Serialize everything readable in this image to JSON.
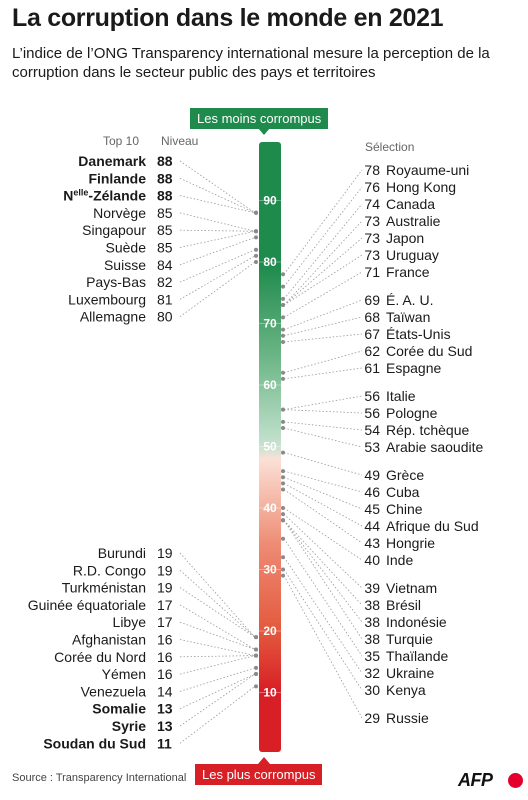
{
  "title": "La corruption dans le monde en 2021",
  "subtitle": "L’indice de l’ONG Transparency international mesure la perception de la corruption dans le secteur public des pays et territoires",
  "top_label": "Les moins corrompus",
  "bottom_label": "Les plus corrompus",
  "left_header": "Top 10",
  "level_header": "Niveau",
  "right_header": "Sélection",
  "source": "Source : Transparency International",
  "logo": "AFP",
  "chart_data": {
    "type": "scale",
    "ylim": [
      11,
      92
    ],
    "ticks": [
      10,
      20,
      30,
      40,
      50,
      60,
      70,
      80,
      90
    ],
    "colors": {
      "top_green": "#1e8a4c",
      "light_green": "#c8e3d1",
      "light_pink": "#fbe0d6",
      "salmon": "#ee8b74",
      "red": "#d81f26"
    },
    "top10": [
      {
        "country": "Danemark",
        "value": 88,
        "bold": true
      },
      {
        "country": "Finlande",
        "value": 88,
        "bold": true
      },
      {
        "country": "Nelle-Zélande",
        "prefix": "N",
        "sup": "elle",
        "suffix": "-Zélande",
        "value": 88,
        "bold": true
      },
      {
        "country": "Norvège",
        "value": 85,
        "bold": false
      },
      {
        "country": "Singapour",
        "value": 85,
        "bold": false
      },
      {
        "country": "Suède",
        "value": 85,
        "bold": false
      },
      {
        "country": "Suisse",
        "value": 84,
        "bold": false
      },
      {
        "country": "Pays-Bas",
        "value": 82,
        "bold": false
      },
      {
        "country": "Luxembourg",
        "value": 81,
        "bold": false
      },
      {
        "country": "Allemagne",
        "value": 80,
        "bold": false
      }
    ],
    "bottom10": [
      {
        "country": "Burundi",
        "value": 19,
        "bold": false
      },
      {
        "country": "R.D. Congo",
        "value": 19,
        "bold": false
      },
      {
        "country": "Turkménistan",
        "value": 19,
        "bold": false
      },
      {
        "country": "Guinée équatoriale",
        "value": 17,
        "bold": false
      },
      {
        "country": "Libye",
        "value": 17,
        "bold": false
      },
      {
        "country": "Afghanistan",
        "value": 16,
        "bold": false
      },
      {
        "country": "Corée du Nord",
        "value": 16,
        "bold": false
      },
      {
        "country": "Yémen",
        "value": 16,
        "bold": false
      },
      {
        "country": "Venezuela",
        "value": 14,
        "bold": false
      },
      {
        "country": "Somalie",
        "value": 13,
        "bold": true
      },
      {
        "country": "Syrie",
        "value": 13,
        "bold": true
      },
      {
        "country": "Soudan du Sud",
        "value": 11,
        "bold": true
      }
    ],
    "selection": [
      {
        "country": "Royaume-uni",
        "value": 78
      },
      {
        "country": "Hong Kong",
        "value": 76
      },
      {
        "country": "Canada",
        "value": 74
      },
      {
        "country": "Australie",
        "value": 73
      },
      {
        "country": "Japon",
        "value": 73
      },
      {
        "country": "Uruguay",
        "value": 73
      },
      {
        "country": "France",
        "value": 71
      },
      {
        "country": "É. A. U.",
        "value": 69
      },
      {
        "country": "Taïwan",
        "value": 68
      },
      {
        "country": "États-Unis",
        "value": 67
      },
      {
        "country": "Corée du Sud",
        "value": 62
      },
      {
        "country": "Espagne",
        "value": 61
      },
      {
        "country": "Italie",
        "value": 56
      },
      {
        "country": "Pologne",
        "value": 56
      },
      {
        "country": "Rép. tchèque",
        "value": 54
      },
      {
        "country": "Arabie saoudite",
        "value": 53
      },
      {
        "country": "Grèce",
        "value": 49
      },
      {
        "country": "Cuba",
        "value": 46
      },
      {
        "country": "Chine",
        "value": 45
      },
      {
        "country": "Afrique du Sud",
        "value": 44
      },
      {
        "country": "Hongrie",
        "value": 43
      },
      {
        "country": "Inde",
        "value": 40
      },
      {
        "country": "Vietnam",
        "value": 39
      },
      {
        "country": "Brésil",
        "value": 38
      },
      {
        "country": "Indonésie",
        "value": 38
      },
      {
        "country": "Turquie",
        "value": 38
      },
      {
        "country": "Thaïlande",
        "value": 35
      },
      {
        "country": "Ukraine",
        "value": 32
      },
      {
        "country": "Kenya",
        "value": 30
      },
      {
        "country": "Russie",
        "value": 29
      }
    ]
  }
}
